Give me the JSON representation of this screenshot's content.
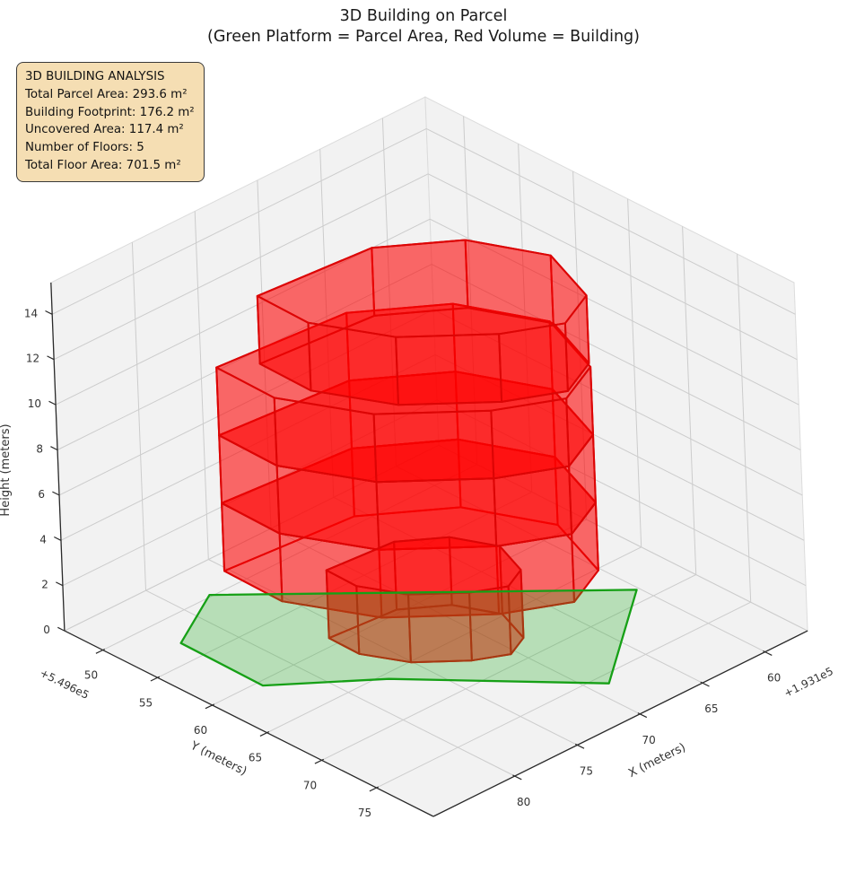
{
  "title": {
    "line1": "3D Building on Parcel",
    "line2": "(Green Platform = Parcel Area, Red Volume = Building)"
  },
  "info_box": {
    "lines": [
      "3D BUILDING ANALYSIS",
      "Total Parcel Area: 293.6 m²",
      "Building Footprint: 176.2 m²",
      "Uncovered Area: 117.4 m²",
      "Number of Floors: 5",
      "Total Floor Area: 701.5 m²"
    ]
  },
  "colors": {
    "background": "#ffffff",
    "pane": "#f2f2f2",
    "pane_edge": "#dcdcdc",
    "grid": "#cccccc",
    "spine": "#2a2a2a",
    "tick_text": "#333333",
    "building_fill": "rgba(255,0,0,0.35)",
    "building_edge": "#dc0505",
    "parcel_fill": "rgba(45,175,45,0.30)",
    "parcel_edge": "#16a016",
    "info_bg": "#f5deb3",
    "info_border": "#3a3a3a"
  },
  "chart_data": {
    "type": "3d-surface-building",
    "title": "3D Building on Parcel (Green Platform = Parcel Area, Red Volume = Building)",
    "legend_note": "Green Platform = Parcel Area, Red Volume = Building",
    "axes": {
      "x": {
        "label": "X (meters)",
        "ticks": [
          80,
          75,
          70,
          65,
          60
        ],
        "offset_text": "+1.931e5",
        "range": [
          56.6,
          86.5
        ]
      },
      "y": {
        "label": "Y (meters)",
        "ticks": [
          50,
          55,
          60,
          65,
          70,
          75
        ],
        "offset_text": "+5.496e5",
        "range": [
          46.5,
          80.2
        ]
      },
      "z": {
        "label": "Height (meters)",
        "ticks": [
          0,
          2,
          4,
          6,
          8,
          10,
          12,
          14
        ],
        "range": [
          0,
          15.4
        ]
      }
    },
    "parcel": {
      "area_m2": 293.6,
      "z": 0,
      "vertices": [
        [
          77.8,
          49.8
        ],
        [
          60.2,
          68.7
        ],
        [
          68.8,
          76.0
        ],
        [
          77.3,
          65.6
        ],
        [
          82.9,
          60.5
        ],
        [
          82.8,
          52.9
        ]
      ]
    },
    "building": {
      "footprint_area_m2": 176.2,
      "uncovered_area_m2": 117.4,
      "num_floors": 5,
      "floor_height_m": 3,
      "total_floor_area_m2": 701.5,
      "footprint": [
        [
          80.6,
          54.6
        ],
        [
          80.7,
          60.0
        ],
        [
          78.0,
          66.0
        ],
        [
          73.0,
          71.0
        ],
        [
          69.0,
          73.3
        ],
        [
          65.5,
          71.5
        ],
        [
          63.5,
          65.5
        ],
        [
          66.0,
          59.5
        ],
        [
          71.0,
          55.5
        ]
      ],
      "floors": [
        {
          "z0": 0,
          "z1": 3,
          "scale": 0.52,
          "dx": 0,
          "dy": 0
        },
        {
          "z0": 3,
          "z1": 6,
          "scale": 1.0,
          "dx": 0,
          "dy": 0
        },
        {
          "z0": 6,
          "z1": 9,
          "scale": 1.0,
          "dx": 0,
          "dy": 0
        },
        {
          "z0": 9,
          "z1": 12,
          "scale": 1.0,
          "dx": 0,
          "dy": 0
        },
        {
          "z0": 12,
          "z1": 15,
          "scale": 0.88,
          "dx": -1.0,
          "dy": 0.5
        }
      ]
    },
    "view": {
      "origin": [
        483,
        910
      ],
      "ref": [
        86.5,
        80.2
      ],
      "ex": [
        -13.95,
        6.92
      ],
      "ey": [
        12.2,
        6.14
      ],
      "ez": [
        -0.98,
        -25.2
      ]
    }
  }
}
